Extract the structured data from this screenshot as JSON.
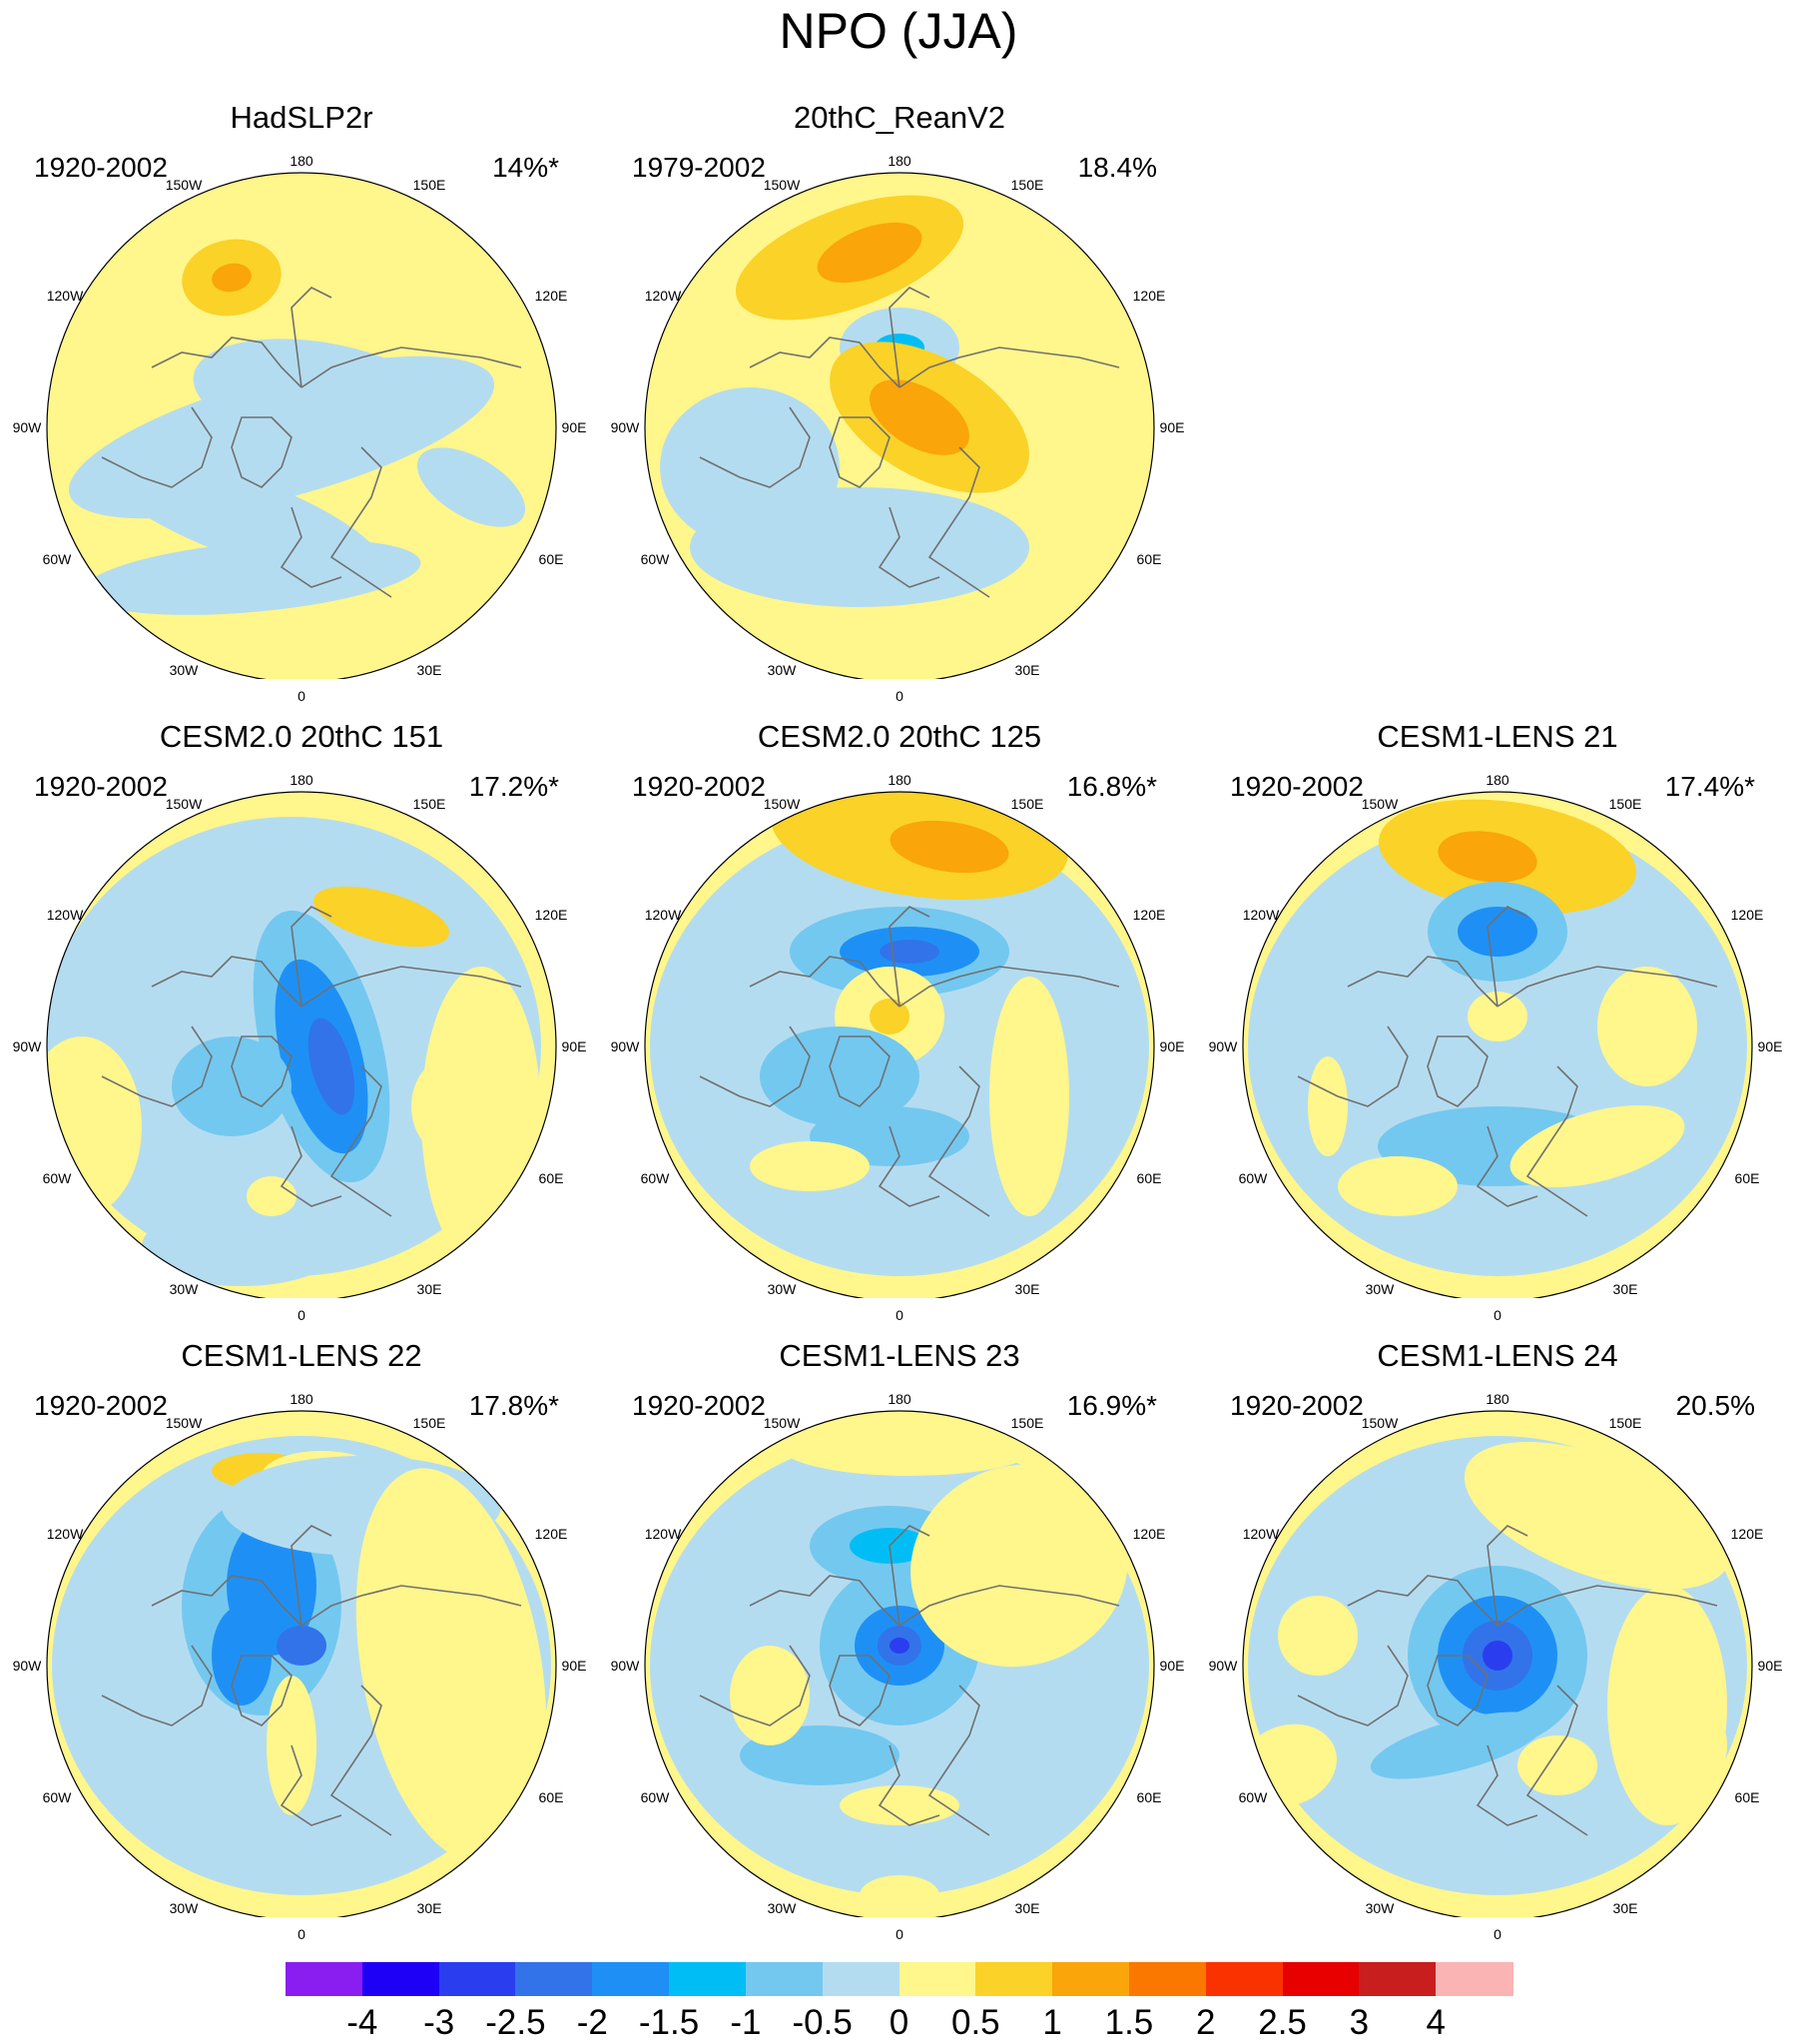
{
  "title": "NPO (JJA)",
  "panels": [
    {
      "id": "p1",
      "title": "HadSLP2r",
      "period": "1920-2002",
      "variance": "14%*",
      "style": 1
    },
    {
      "id": "p2",
      "title": "20thC_ReanV2",
      "period": "1979-2002",
      "variance": "18.4%",
      "style": 2
    },
    {
      "id": "p3",
      "title": "CESM2.0 20thC 151",
      "period": "1920-2002",
      "variance": "17.2%*",
      "style": 3
    },
    {
      "id": "p4",
      "title": "CESM2.0 20thC 125",
      "period": "1920-2002",
      "variance": "16.8%*",
      "style": 4
    },
    {
      "id": "p5",
      "title": "CESM1-LENS 21",
      "period": "1920-2002",
      "variance": "17.4%*",
      "style": 5
    },
    {
      "id": "p6",
      "title": "CESM1-LENS 22",
      "period": "1920-2002",
      "variance": "17.8%*",
      "style": 6
    },
    {
      "id": "p7",
      "title": "CESM1-LENS 23",
      "period": "1920-2002",
      "variance": "16.9%*",
      "style": 7
    },
    {
      "id": "p8",
      "title": "CESM1-LENS 24",
      "period": "1920-2002",
      "variance": "20.5%",
      "style": 8
    }
  ],
  "map_labels": {
    "lon_180": "180",
    "lon_150w": "150W",
    "lon_150e": "150E",
    "lon_120w": "120W",
    "lon_120e": "120E",
    "lon_90w": "90W",
    "lon_90e": "90E",
    "lon_60w": "60W",
    "lon_60e": "60E",
    "lon_30w": "30W",
    "lon_30e": "30E",
    "lon_0": "0"
  },
  "colorbar": {
    "ticks": [
      "-4",
      "-3",
      "-2.5",
      "-2",
      "-1.5",
      "-1",
      "-0.5",
      "0",
      "0.5",
      "1",
      "1.5",
      "2",
      "2.5",
      "3",
      "4"
    ],
    "colors": [
      "#8a1ef0",
      "#1d00f5",
      "#2a3ef0",
      "#3273ea",
      "#1e90f5",
      "#00bef5",
      "#73c8f0",
      "#b4dcf0",
      "#fff68c",
      "#fad228",
      "#faa50a",
      "#fa7800",
      "#fa3200",
      "#e60000",
      "#c81e1e",
      "#fab4b4"
    ]
  }
}
